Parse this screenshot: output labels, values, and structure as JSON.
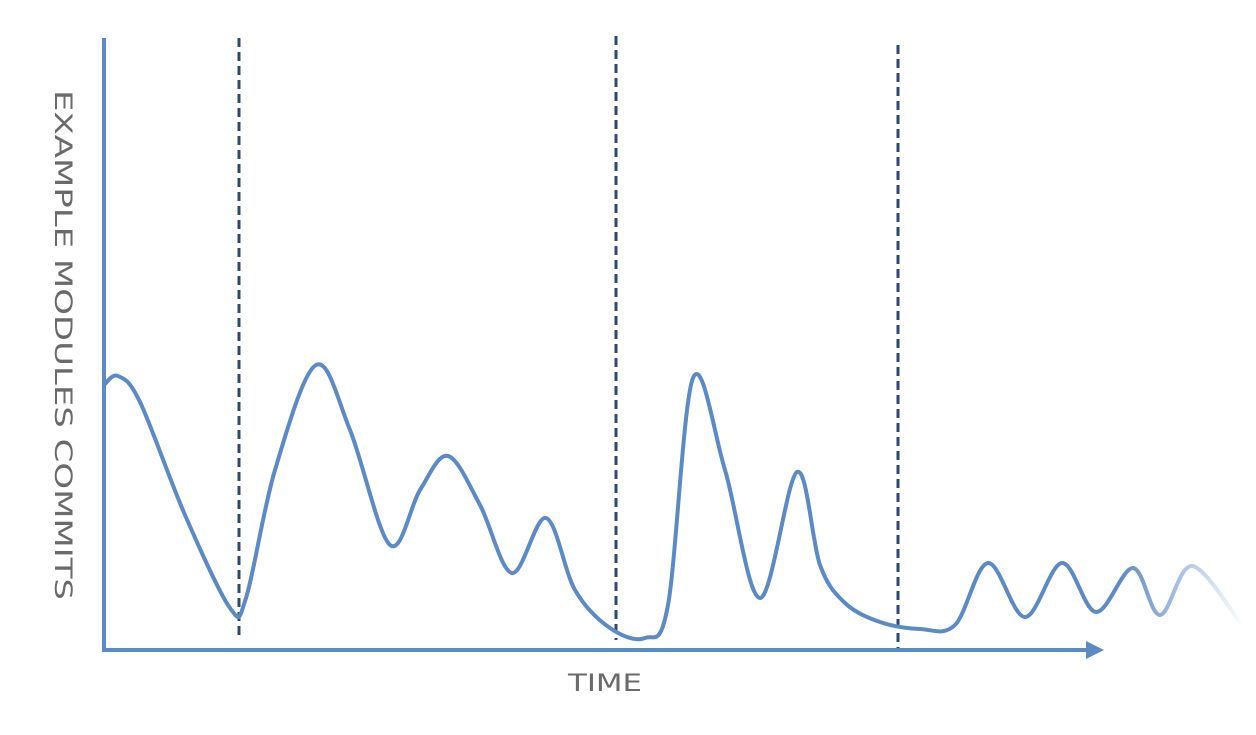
{
  "axes": {
    "y_label": "EXAMPLE MODULES COMMITS",
    "x_label": "TIME"
  }
}
